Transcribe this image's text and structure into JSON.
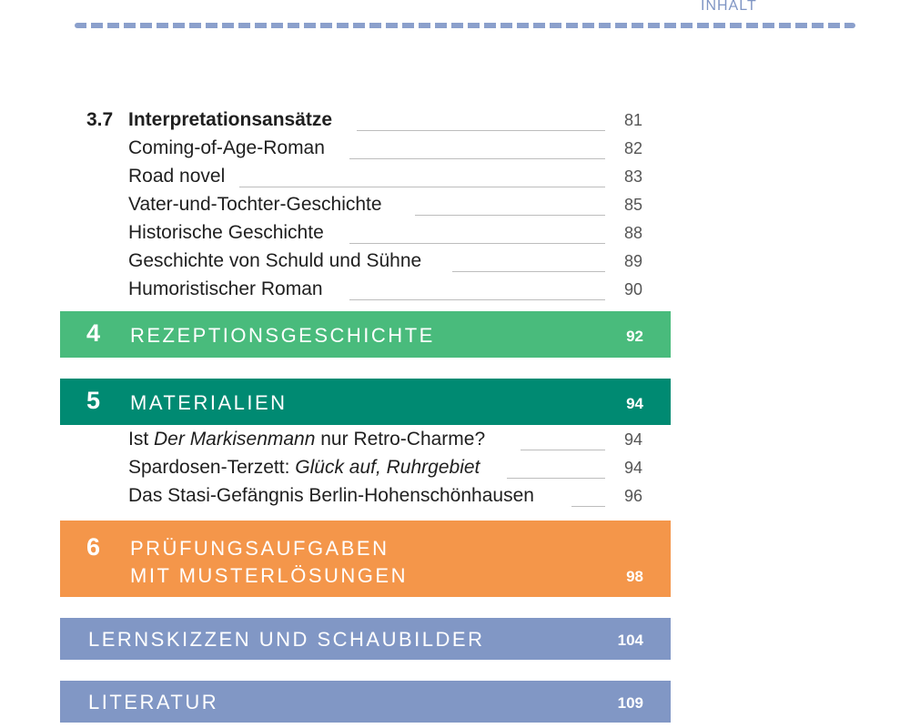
{
  "header": {
    "label": "INHALT"
  },
  "colors": {
    "green_light": "#49bb7c",
    "teal": "#008a72",
    "orange": "#f4964a",
    "blue_grey": "#8197c5",
    "rule": "#8ba0cc"
  },
  "section_3_7": {
    "number": "3.7",
    "title": "Interpretationsansätze",
    "page": "81",
    "items": [
      {
        "text": "Coming-of-Age-Roman",
        "page": "82"
      },
      {
        "text": "Road novel",
        "page": "83"
      },
      {
        "text": "Vater-und-Tochter-Geschichte",
        "page": "85"
      },
      {
        "text": "Historische Geschichte",
        "page": "88"
      },
      {
        "text": "Geschichte von Schuld und Sühne",
        "page": "89"
      },
      {
        "text": "Humoristischer Roman",
        "page": "90"
      }
    ]
  },
  "chapter_4": {
    "number": "4",
    "title": "REZEPTIONSGESCHICHTE",
    "page": "92"
  },
  "chapter_5": {
    "number": "5",
    "title": "MATERIALIEN",
    "page": "94",
    "items": [
      {
        "pre": "Ist ",
        "italic": "Der Markisenmann",
        "post": " nur Retro-Charme?",
        "page": "94"
      },
      {
        "pre": "Spardosen-Terzett: ",
        "italic": "Glück auf, Ruhrgebiet",
        "post": "",
        "page": "94"
      },
      {
        "pre": "Das Stasi-Gefängnis Berlin-Hohenschönhausen",
        "italic": "",
        "post": "",
        "page": "96"
      }
    ]
  },
  "chapter_6": {
    "number": "6",
    "title_line1": "PRÜFUNGSAUFGABEN",
    "title_line2": "MIT MUSTERLÖSUNGEN",
    "page": "98"
  },
  "lernskizzen": {
    "title": "LERNSKIZZEN UND SCHAUBILDER",
    "page": "104"
  },
  "literatur": {
    "title": "LITERATUR",
    "page": "109"
  }
}
